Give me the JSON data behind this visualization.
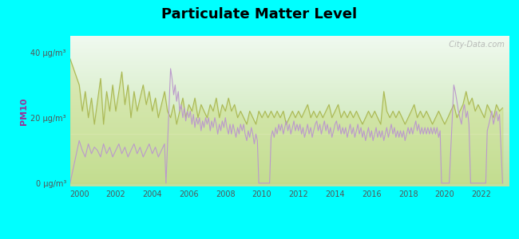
{
  "title": "Particulate Matter Level",
  "ylabel": "PM10",
  "background_color": "#00FFFF",
  "plot_bg_top": "#f5faf5",
  "plot_bg_bottom": "#c8e8b0",
  "title_fontsize": 13,
  "ytick_labels": [
    "0 μg/m³",
    "20 μg/m³",
    "40 μg/m³"
  ],
  "ytick_values": [
    0,
    20,
    40
  ],
  "ylim": [
    -1,
    45
  ],
  "xlim": [
    1999.5,
    2023.5
  ],
  "xticks": [
    2000,
    2002,
    2004,
    2006,
    2008,
    2010,
    2012,
    2014,
    2016,
    2018,
    2020,
    2022
  ],
  "thiensville_color": "#bb99cc",
  "us_color": "#aab855",
  "us_fill_color": "#c8d870",
  "watermark": "  City-Data.com",
  "thiensville_data": [
    [
      1999.5,
      0
    ],
    [
      2000.0,
      13
    ],
    [
      2000.17,
      10
    ],
    [
      2000.33,
      8
    ],
    [
      2000.5,
      12
    ],
    [
      2000.67,
      9
    ],
    [
      2000.83,
      11
    ],
    [
      2001.0,
      10
    ],
    [
      2001.17,
      8
    ],
    [
      2001.33,
      12
    ],
    [
      2001.5,
      9
    ],
    [
      2001.67,
      11
    ],
    [
      2001.83,
      8
    ],
    [
      2002.0,
      10
    ],
    [
      2002.17,
      12
    ],
    [
      2002.33,
      9
    ],
    [
      2002.5,
      11
    ],
    [
      2002.67,
      8
    ],
    [
      2002.83,
      10
    ],
    [
      2003.0,
      12
    ],
    [
      2003.17,
      9
    ],
    [
      2003.33,
      11
    ],
    [
      2003.5,
      8
    ],
    [
      2003.67,
      10
    ],
    [
      2003.83,
      12
    ],
    [
      2004.0,
      9
    ],
    [
      2004.17,
      11
    ],
    [
      2004.33,
      8
    ],
    [
      2004.5,
      10
    ],
    [
      2004.67,
      12
    ],
    [
      2004.75,
      0
    ],
    [
      2005.0,
      35
    ],
    [
      2005.08,
      32
    ],
    [
      2005.17,
      27
    ],
    [
      2005.25,
      30
    ],
    [
      2005.33,
      25
    ],
    [
      2005.42,
      28
    ],
    [
      2005.5,
      22
    ],
    [
      2005.58,
      24
    ],
    [
      2005.67,
      20
    ],
    [
      2005.75,
      23
    ],
    [
      2005.83,
      19
    ],
    [
      2005.92,
      22
    ],
    [
      2006.0,
      20
    ],
    [
      2006.08,
      22
    ],
    [
      2006.17,
      18
    ],
    [
      2006.25,
      21
    ],
    [
      2006.33,
      17
    ],
    [
      2006.42,
      20
    ],
    [
      2006.5,
      18
    ],
    [
      2006.58,
      20
    ],
    [
      2006.67,
      16
    ],
    [
      2006.75,
      19
    ],
    [
      2006.83,
      17
    ],
    [
      2006.92,
      20
    ],
    [
      2007.0,
      18
    ],
    [
      2007.08,
      20
    ],
    [
      2007.17,
      16
    ],
    [
      2007.25,
      19
    ],
    [
      2007.33,
      17
    ],
    [
      2007.42,
      20
    ],
    [
      2007.5,
      18
    ],
    [
      2007.58,
      15
    ],
    [
      2007.67,
      18
    ],
    [
      2007.75,
      16
    ],
    [
      2007.83,
      19
    ],
    [
      2007.92,
      17
    ],
    [
      2008.0,
      20
    ],
    [
      2008.08,
      17
    ],
    [
      2008.17,
      15
    ],
    [
      2008.25,
      18
    ],
    [
      2008.33,
      15
    ],
    [
      2008.42,
      18
    ],
    [
      2008.5,
      16
    ],
    [
      2008.58,
      14
    ],
    [
      2008.67,
      17
    ],
    [
      2008.75,
      15
    ],
    [
      2008.83,
      18
    ],
    [
      2008.92,
      16
    ],
    [
      2009.0,
      18
    ],
    [
      2009.08,
      15
    ],
    [
      2009.17,
      13
    ],
    [
      2009.25,
      16
    ],
    [
      2009.33,
      14
    ],
    [
      2009.42,
      17
    ],
    [
      2009.5,
      15
    ],
    [
      2009.58,
      12
    ],
    [
      2009.67,
      15
    ],
    [
      2009.75,
      13
    ],
    [
      2009.83,
      0
    ],
    [
      2009.92,
      0
    ],
    [
      2010.0,
      0
    ],
    [
      2010.08,
      0
    ],
    [
      2010.17,
      0
    ],
    [
      2010.25,
      0
    ],
    [
      2010.33,
      0
    ],
    [
      2010.42,
      0
    ],
    [
      2010.5,
      14
    ],
    [
      2010.58,
      16
    ],
    [
      2010.67,
      14
    ],
    [
      2010.75,
      17
    ],
    [
      2010.83,
      15
    ],
    [
      2010.92,
      18
    ],
    [
      2011.0,
      16
    ],
    [
      2011.08,
      18
    ],
    [
      2011.17,
      15
    ],
    [
      2011.25,
      17
    ],
    [
      2011.33,
      19
    ],
    [
      2011.42,
      16
    ],
    [
      2011.5,
      18
    ],
    [
      2011.58,
      15
    ],
    [
      2011.67,
      17
    ],
    [
      2011.75,
      19
    ],
    [
      2011.83,
      16
    ],
    [
      2011.92,
      18
    ],
    [
      2012.0,
      16
    ],
    [
      2012.08,
      18
    ],
    [
      2012.17,
      15
    ],
    [
      2012.25,
      17
    ],
    [
      2012.33,
      14
    ],
    [
      2012.42,
      16
    ],
    [
      2012.5,
      18
    ],
    [
      2012.58,
      15
    ],
    [
      2012.67,
      17
    ],
    [
      2012.75,
      14
    ],
    [
      2012.83,
      16
    ],
    [
      2012.92,
      18
    ],
    [
      2013.0,
      19
    ],
    [
      2013.08,
      16
    ],
    [
      2013.17,
      18
    ],
    [
      2013.25,
      15
    ],
    [
      2013.33,
      17
    ],
    [
      2013.42,
      19
    ],
    [
      2013.5,
      16
    ],
    [
      2013.58,
      18
    ],
    [
      2013.67,
      15
    ],
    [
      2013.75,
      17
    ],
    [
      2013.83,
      14
    ],
    [
      2013.92,
      16
    ],
    [
      2014.0,
      18
    ],
    [
      2014.08,
      19
    ],
    [
      2014.17,
      16
    ],
    [
      2014.25,
      18
    ],
    [
      2014.33,
      15
    ],
    [
      2014.42,
      17
    ],
    [
      2014.5,
      15
    ],
    [
      2014.58,
      17
    ],
    [
      2014.67,
      14
    ],
    [
      2014.75,
      16
    ],
    [
      2014.83,
      18
    ],
    [
      2014.92,
      15
    ],
    [
      2015.0,
      17
    ],
    [
      2015.08,
      14
    ],
    [
      2015.17,
      16
    ],
    [
      2015.25,
      18
    ],
    [
      2015.33,
      15
    ],
    [
      2015.42,
      17
    ],
    [
      2015.5,
      14
    ],
    [
      2015.58,
      16
    ],
    [
      2015.67,
      13
    ],
    [
      2015.75,
      15
    ],
    [
      2015.83,
      17
    ],
    [
      2015.92,
      14
    ],
    [
      2016.0,
      16
    ],
    [
      2016.08,
      13
    ],
    [
      2016.17,
      15
    ],
    [
      2016.25,
      17
    ],
    [
      2016.33,
      14
    ],
    [
      2016.42,
      16
    ],
    [
      2016.5,
      14
    ],
    [
      2016.58,
      16
    ],
    [
      2016.67,
      13
    ],
    [
      2016.75,
      15
    ],
    [
      2016.83,
      17
    ],
    [
      2016.92,
      14
    ],
    [
      2017.0,
      16
    ],
    [
      2017.08,
      18
    ],
    [
      2017.17,
      15
    ],
    [
      2017.25,
      17
    ],
    [
      2017.33,
      14
    ],
    [
      2017.42,
      16
    ],
    [
      2017.5,
      14
    ],
    [
      2017.58,
      16
    ],
    [
      2017.67,
      14
    ],
    [
      2017.75,
      16
    ],
    [
      2017.83,
      13
    ],
    [
      2017.92,
      15
    ],
    [
      2018.0,
      17
    ],
    [
      2018.08,
      15
    ],
    [
      2018.17,
      17
    ],
    [
      2018.25,
      15
    ],
    [
      2018.33,
      17
    ],
    [
      2018.42,
      19
    ],
    [
      2018.5,
      16
    ],
    [
      2018.58,
      18
    ],
    [
      2018.67,
      15
    ],
    [
      2018.75,
      17
    ],
    [
      2018.83,
      15
    ],
    [
      2018.92,
      17
    ],
    [
      2019.0,
      15
    ],
    [
      2019.08,
      17
    ],
    [
      2019.17,
      15
    ],
    [
      2019.25,
      17
    ],
    [
      2019.33,
      15
    ],
    [
      2019.42,
      17
    ],
    [
      2019.5,
      15
    ],
    [
      2019.58,
      17
    ],
    [
      2019.67,
      14
    ],
    [
      2019.75,
      16
    ],
    [
      2019.83,
      0
    ],
    [
      2019.92,
      0
    ],
    [
      2020.0,
      0
    ],
    [
      2020.08,
      0
    ],
    [
      2020.17,
      0
    ],
    [
      2020.25,
      0
    ],
    [
      2020.5,
      30
    ],
    [
      2020.58,
      28
    ],
    [
      2020.67,
      25
    ],
    [
      2020.75,
      22
    ],
    [
      2020.83,
      20
    ],
    [
      2020.92,
      18
    ],
    [
      2021.0,
      22
    ],
    [
      2021.08,
      24
    ],
    [
      2021.17,
      20
    ],
    [
      2021.25,
      22
    ],
    [
      2021.33,
      18
    ],
    [
      2021.42,
      0
    ],
    [
      2021.5,
      0
    ],
    [
      2021.58,
      0
    ],
    [
      2021.67,
      0
    ],
    [
      2021.75,
      0
    ],
    [
      2021.83,
      0
    ],
    [
      2021.92,
      0
    ],
    [
      2022.0,
      0
    ],
    [
      2022.08,
      0
    ],
    [
      2022.17,
      0
    ],
    [
      2022.25,
      0
    ],
    [
      2022.33,
      16
    ],
    [
      2022.42,
      18
    ],
    [
      2022.5,
      20
    ],
    [
      2022.58,
      22
    ],
    [
      2022.67,
      18
    ],
    [
      2022.75,
      20
    ],
    [
      2022.83,
      22
    ],
    [
      2022.92,
      19
    ],
    [
      2023.0,
      21
    ],
    [
      2023.17,
      0
    ]
  ],
  "us_data": [
    [
      1999.5,
      38
    ],
    [
      2000.0,
      30
    ],
    [
      2000.17,
      22
    ],
    [
      2000.33,
      28
    ],
    [
      2000.5,
      20
    ],
    [
      2000.67,
      26
    ],
    [
      2000.83,
      18
    ],
    [
      2001.0,
      25
    ],
    [
      2001.17,
      32
    ],
    [
      2001.33,
      18
    ],
    [
      2001.5,
      28
    ],
    [
      2001.67,
      22
    ],
    [
      2001.83,
      30
    ],
    [
      2002.0,
      22
    ],
    [
      2002.17,
      28
    ],
    [
      2002.33,
      34
    ],
    [
      2002.5,
      24
    ],
    [
      2002.67,
      30
    ],
    [
      2002.83,
      20
    ],
    [
      2003.0,
      28
    ],
    [
      2003.17,
      22
    ],
    [
      2003.33,
      26
    ],
    [
      2003.5,
      30
    ],
    [
      2003.67,
      24
    ],
    [
      2003.83,
      28
    ],
    [
      2004.0,
      22
    ],
    [
      2004.17,
      26
    ],
    [
      2004.33,
      20
    ],
    [
      2004.5,
      24
    ],
    [
      2004.67,
      28
    ],
    [
      2004.83,
      22
    ],
    [
      2005.0,
      20
    ],
    [
      2005.17,
      24
    ],
    [
      2005.33,
      18
    ],
    [
      2005.5,
      22
    ],
    [
      2005.67,
      26
    ],
    [
      2005.83,
      20
    ],
    [
      2006.0,
      24
    ],
    [
      2006.17,
      22
    ],
    [
      2006.33,
      26
    ],
    [
      2006.5,
      20
    ],
    [
      2006.67,
      24
    ],
    [
      2006.83,
      22
    ],
    [
      2007.0,
      20
    ],
    [
      2007.17,
      24
    ],
    [
      2007.33,
      22
    ],
    [
      2007.5,
      26
    ],
    [
      2007.67,
      20
    ],
    [
      2007.83,
      24
    ],
    [
      2008.0,
      22
    ],
    [
      2008.17,
      26
    ],
    [
      2008.33,
      22
    ],
    [
      2008.5,
      24
    ],
    [
      2008.67,
      20
    ],
    [
      2008.83,
      22
    ],
    [
      2009.0,
      20
    ],
    [
      2009.17,
      18
    ],
    [
      2009.33,
      22
    ],
    [
      2009.5,
      20
    ],
    [
      2009.67,
      18
    ],
    [
      2009.83,
      22
    ],
    [
      2010.0,
      20
    ],
    [
      2010.17,
      22
    ],
    [
      2010.33,
      20
    ],
    [
      2010.5,
      22
    ],
    [
      2010.67,
      20
    ],
    [
      2010.83,
      22
    ],
    [
      2011.0,
      20
    ],
    [
      2011.17,
      22
    ],
    [
      2011.33,
      18
    ],
    [
      2011.5,
      20
    ],
    [
      2011.67,
      22
    ],
    [
      2011.83,
      20
    ],
    [
      2012.0,
      22
    ],
    [
      2012.17,
      20
    ],
    [
      2012.33,
      22
    ],
    [
      2012.5,
      24
    ],
    [
      2012.67,
      20
    ],
    [
      2012.83,
      22
    ],
    [
      2013.0,
      20
    ],
    [
      2013.17,
      22
    ],
    [
      2013.33,
      20
    ],
    [
      2013.5,
      22
    ],
    [
      2013.67,
      24
    ],
    [
      2013.83,
      20
    ],
    [
      2014.0,
      22
    ],
    [
      2014.17,
      24
    ],
    [
      2014.33,
      20
    ],
    [
      2014.5,
      22
    ],
    [
      2014.67,
      20
    ],
    [
      2014.83,
      22
    ],
    [
      2015.0,
      20
    ],
    [
      2015.17,
      22
    ],
    [
      2015.33,
      20
    ],
    [
      2015.5,
      18
    ],
    [
      2015.67,
      20
    ],
    [
      2015.83,
      22
    ],
    [
      2016.0,
      20
    ],
    [
      2016.17,
      22
    ],
    [
      2016.33,
      20
    ],
    [
      2016.5,
      18
    ],
    [
      2016.67,
      28
    ],
    [
      2016.83,
      22
    ],
    [
      2017.0,
      20
    ],
    [
      2017.17,
      22
    ],
    [
      2017.33,
      20
    ],
    [
      2017.5,
      22
    ],
    [
      2017.67,
      20
    ],
    [
      2017.83,
      18
    ],
    [
      2018.0,
      20
    ],
    [
      2018.17,
      22
    ],
    [
      2018.33,
      24
    ],
    [
      2018.5,
      20
    ],
    [
      2018.67,
      22
    ],
    [
      2018.83,
      20
    ],
    [
      2019.0,
      22
    ],
    [
      2019.17,
      20
    ],
    [
      2019.33,
      18
    ],
    [
      2019.5,
      20
    ],
    [
      2019.67,
      22
    ],
    [
      2019.83,
      20
    ],
    [
      2020.0,
      18
    ],
    [
      2020.17,
      20
    ],
    [
      2020.33,
      22
    ],
    [
      2020.5,
      24
    ],
    [
      2020.67,
      20
    ],
    [
      2020.83,
      22
    ],
    [
      2021.0,
      24
    ],
    [
      2021.17,
      28
    ],
    [
      2021.33,
      24
    ],
    [
      2021.5,
      26
    ],
    [
      2021.67,
      22
    ],
    [
      2021.83,
      24
    ],
    [
      2022.0,
      22
    ],
    [
      2022.17,
      20
    ],
    [
      2022.33,
      24
    ],
    [
      2022.5,
      22
    ],
    [
      2022.67,
      20
    ],
    [
      2022.83,
      24
    ],
    [
      2023.0,
      22
    ],
    [
      2023.17,
      23
    ]
  ]
}
